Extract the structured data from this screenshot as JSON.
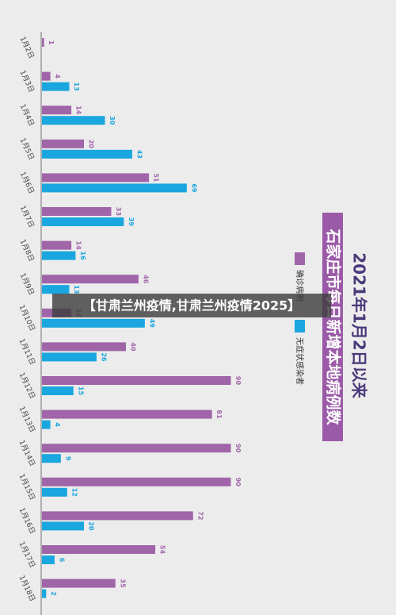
{
  "chart_data": {
    "type": "bar",
    "title": "2021年1月2日以来",
    "subtitle": "石家庄市每日新增本地病例数",
    "categories": [
      "1月2日",
      "1月3日",
      "1月4日",
      "1月5日",
      "1月6日",
      "1月7日",
      "1月8日",
      "1月9日",
      "1月10日",
      "1月11日",
      "1月12日",
      "1月13日",
      "1月14日",
      "1月15日",
      "1月16日",
      "1月17日",
      "1月18日"
    ],
    "series": [
      {
        "name": "确诊病例",
        "color": "#a065a9",
        "values": [
          1,
          4,
          14,
          20,
          51,
          33,
          14,
          46,
          14,
          40,
          90,
          81,
          90,
          90,
          72,
          54,
          35
        ]
      },
      {
        "name": "无症状感染者",
        "color": "#1aa6de",
        "values": [
          null,
          13,
          30,
          43,
          69,
          39,
          16,
          13,
          49,
          26,
          15,
          4,
          9,
          12,
          20,
          6,
          2
        ]
      }
    ]
  },
  "banner": "【甘肃兰州疫情,甘肃兰州疫情2025】"
}
